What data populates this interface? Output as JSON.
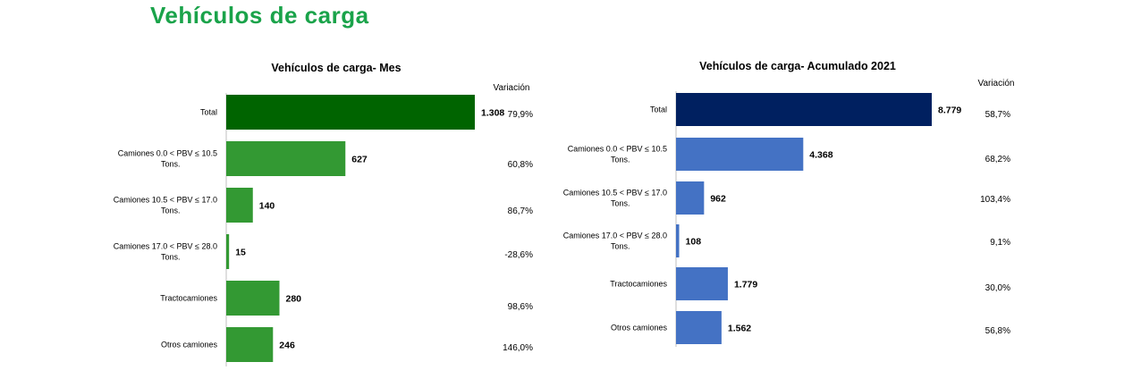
{
  "page": {
    "title": "Vehículos de carga"
  },
  "chart_data": [
    {
      "type": "bar",
      "orientation": "horizontal",
      "title": "Vehículos de carga- Mes",
      "variation_header": "Variación",
      "categories": [
        [
          "Total"
        ],
        [
          "Camiones 0.0 < PBV ≤ 10.5",
          "Tons."
        ],
        [
          "Camiones 10.5 < PBV ≤ 17.0",
          "Tons."
        ],
        [
          "Camiones 17.0 < PBV ≤ 28.0",
          "Tons."
        ],
        [
          "Tractocamiones"
        ],
        [
          "Otros camiones"
        ]
      ],
      "values": [
        1308,
        627,
        140,
        15,
        280,
        246
      ],
      "value_labels": [
        "1.308",
        "627",
        "140",
        "15",
        "280",
        "246"
      ],
      "variations": [
        "79,9%",
        "60,8%",
        "86,7%",
        "-28,6%",
        "98,6%",
        "146,0%"
      ],
      "colors": [
        "#006400",
        "#339933",
        "#339933",
        "#339933",
        "#339933",
        "#339933"
      ]
    },
    {
      "type": "bar",
      "orientation": "horizontal",
      "title": "Vehículos de carga- Acumulado 2021",
      "variation_header": "Variación",
      "categories": [
        [
          "Total"
        ],
        [
          "Camiones 0.0 < PBV ≤ 10.5",
          "Tons."
        ],
        [
          "Camiones 10.5 < PBV ≤ 17.0",
          "Tons."
        ],
        [
          "Camiones 17.0 < PBV ≤ 28.0",
          "Tons."
        ],
        [
          "Tractocamiones"
        ],
        [
          "Otros camiones"
        ]
      ],
      "values": [
        8779,
        4368,
        962,
        108,
        1779,
        1562
      ],
      "value_labels": [
        "8.779",
        "4.368",
        "962",
        "108",
        "1.779",
        "1.562"
      ],
      "variations": [
        "58,7%",
        "68,2%",
        "103,4%",
        "9,1%",
        "30,0%",
        "56,8%"
      ],
      "colors": [
        "#002060",
        "#4472c4",
        "#4472c4",
        "#4472c4",
        "#4472c4",
        "#4472c4"
      ]
    }
  ]
}
